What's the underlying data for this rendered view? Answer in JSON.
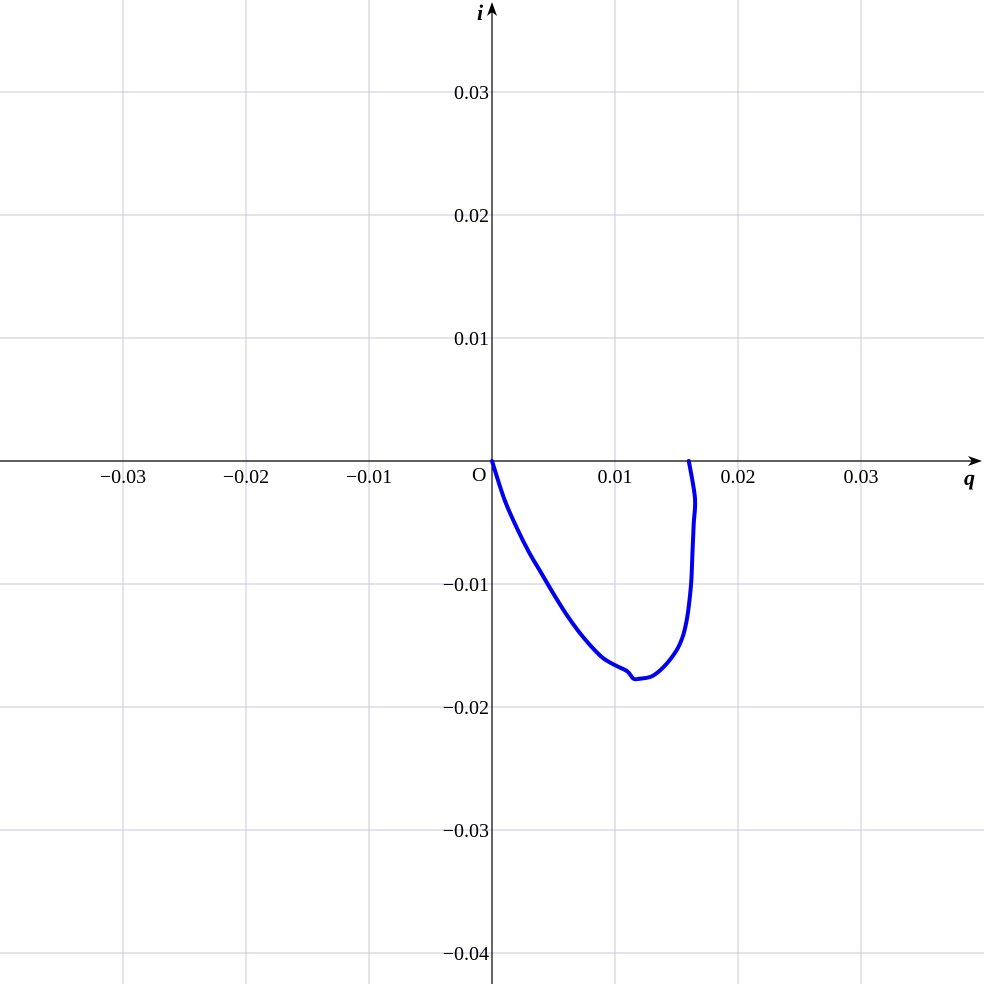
{
  "chart_data": {
    "type": "line",
    "xlabel": "q",
    "ylabel": "i",
    "origin_label": "O",
    "xlim": [
      -0.04,
      0.04
    ],
    "ylim": [
      -0.042,
      0.038
    ],
    "x_ticks": [
      -0.03,
      -0.02,
      -0.01,
      0.01,
      0.02,
      0.03
    ],
    "x_tick_labels": [
      "−0.03",
      "−0.02",
      "−0.01",
      "0.01",
      "0.02",
      "0.03"
    ],
    "y_ticks": [
      0.03,
      0.02,
      0.01,
      -0.01,
      -0.02,
      -0.03,
      -0.04
    ],
    "y_tick_labels": [
      "0.03",
      "0.02",
      "0.01",
      "−0.01",
      "−0.02",
      "−0.03",
      "−0.04"
    ],
    "grid": true,
    "series": [
      {
        "color": "#0000ee",
        "points": [
          [
            0.0,
            0.0
          ],
          [
            0.001,
            -0.0031
          ],
          [
            0.002,
            -0.0054
          ],
          [
            0.003,
            -0.0074
          ],
          [
            0.004,
            -0.0091
          ],
          [
            0.005,
            -0.0108
          ],
          [
            0.006,
            -0.0124
          ],
          [
            0.007,
            -0.0138
          ],
          [
            0.008,
            -0.015
          ],
          [
            0.009,
            -0.016
          ],
          [
            0.01,
            -0.0166
          ],
          [
            0.011,
            -0.0171
          ],
          [
            0.0115,
            -0.0177
          ],
          [
            0.012,
            -0.0177
          ],
          [
            0.013,
            -0.0175
          ],
          [
            0.014,
            -0.0167
          ],
          [
            0.015,
            -0.0154
          ],
          [
            0.0155,
            -0.0143
          ],
          [
            0.0158,
            -0.0131
          ],
          [
            0.016,
            -0.0118
          ],
          [
            0.0162,
            -0.0098
          ],
          [
            0.0163,
            -0.0074
          ],
          [
            0.0164,
            -0.0051
          ],
          [
            0.0165,
            -0.003
          ],
          [
            0.016,
            0.0
          ]
        ]
      }
    ]
  }
}
